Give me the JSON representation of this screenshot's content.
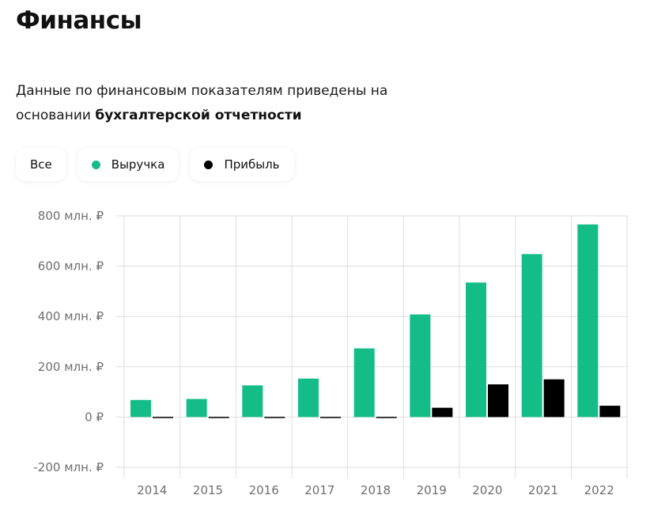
{
  "page": {
    "title": "Финансы",
    "description_plain": "Данные по финансовым показателям приведены на основании ",
    "description_bold": "бухгалтерской отчетности"
  },
  "filters": [
    {
      "label": "Все",
      "color": null
    },
    {
      "label": "Выручка",
      "color": "#14bc88"
    },
    {
      "label": "Прибыль",
      "color": "#000000"
    }
  ],
  "colors": {
    "revenue": "#14bc88",
    "profit": "#000000",
    "grid": "#dedede",
    "tick_text": "#6e6e6e"
  },
  "chart_data": {
    "type": "bar",
    "categories": [
      "2014",
      "2015",
      "2016",
      "2017",
      "2018",
      "2019",
      "2020",
      "2021",
      "2022"
    ],
    "series": [
      {
        "name": "Выручка",
        "values": [
          68,
          72,
          126,
          153,
          273,
          408,
          535,
          648,
          766
        ]
      },
      {
        "name": "Прибыль",
        "values": [
          -2,
          -4,
          -2,
          3,
          -2,
          37,
          130,
          150,
          45
        ]
      }
    ],
    "ylim": [
      -200,
      800
    ],
    "yticks": [
      800,
      600,
      400,
      200,
      0,
      -200
    ],
    "ytick_labels": [
      "800 млн. ₽",
      "600 млн. ₽",
      "400 млн. ₽",
      "200 млн. ₽",
      "0 ₽",
      "-200 млн. ₽"
    ],
    "grid": true,
    "xlabel": "",
    "ylabel": ""
  }
}
